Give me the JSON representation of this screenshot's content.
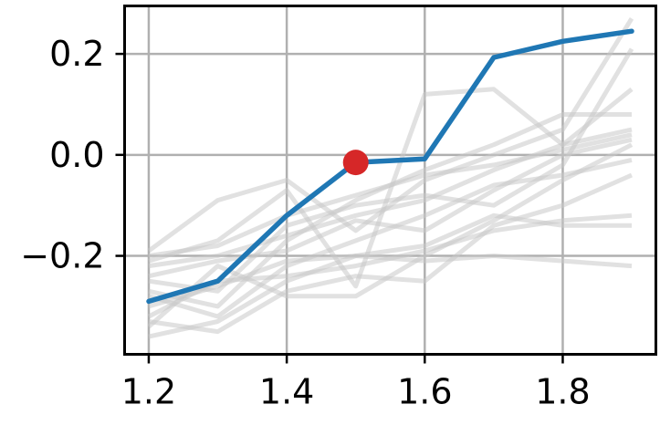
{
  "chart_data": {
    "type": "line",
    "title": "",
    "xlabel": "",
    "ylabel": "",
    "xlim": [
      1.165,
      1.935
    ],
    "ylim": [
      -0.395,
      0.295
    ],
    "grid": true,
    "legend": "none",
    "x_ticks": [
      {
        "value": 1.2,
        "label": "1.2"
      },
      {
        "value": 1.4,
        "label": "1.4"
      },
      {
        "value": 1.6,
        "label": "1.6"
      },
      {
        "value": 1.8,
        "label": "1.8"
      }
    ],
    "y_ticks": [
      {
        "value": 0.2,
        "label": "0.2"
      },
      {
        "value": 0.0,
        "label": "0.0"
      },
      {
        "value": -0.2,
        "label": "−0.2"
      }
    ],
    "x": [
      1.2,
      1.3,
      1.4,
      1.5,
      1.6,
      1.7,
      1.8,
      1.9
    ],
    "main_series": {
      "color": "#1f77b4",
      "values": [
        -0.29,
        -0.25,
        -0.12,
        -0.015,
        -0.008,
        0.193,
        0.225,
        0.245
      ]
    },
    "highlight_point": {
      "x": 1.5,
      "y": -0.015,
      "color": "#d62728"
    },
    "background_series_color": "#c8c8c8",
    "background_series": [
      {
        "values": [
          -0.19,
          -0.09,
          -0.05,
          -0.15,
          -0.05,
          0.0,
          0.05,
          0.27
        ]
      },
      {
        "values": [
          -0.21,
          -0.17,
          -0.07,
          -0.26,
          0.12,
          0.13,
          0.02,
          0.13
        ]
      },
      {
        "values": [
          -0.22,
          -0.2,
          -0.16,
          -0.12,
          -0.09,
          -0.03,
          0.02,
          0.05
        ]
      },
      {
        "values": [
          -0.24,
          -0.21,
          -0.19,
          -0.13,
          -0.15,
          -0.07,
          0.0,
          0.03
        ]
      },
      {
        "values": [
          -0.25,
          -0.27,
          -0.14,
          -0.1,
          -0.08,
          -0.1,
          -0.02,
          0.21
        ]
      },
      {
        "values": [
          -0.27,
          -0.3,
          -0.17,
          -0.09,
          -0.03,
          0.02,
          0.08,
          0.08
        ]
      },
      {
        "values": [
          -0.3,
          -0.26,
          -0.21,
          -0.2,
          -0.21,
          -0.2,
          -0.21,
          -0.22
        ]
      },
      {
        "values": [
          -0.32,
          -0.25,
          -0.24,
          -0.22,
          -0.19,
          -0.15,
          -0.13,
          -0.12
        ]
      },
      {
        "values": [
          -0.33,
          -0.35,
          -0.27,
          -0.24,
          -0.25,
          -0.14,
          -0.1,
          -0.04
        ]
      },
      {
        "values": [
          -0.34,
          -0.22,
          -0.28,
          -0.28,
          -0.2,
          -0.13,
          -0.05,
          0.02
        ]
      },
      {
        "values": [
          -0.36,
          -0.33,
          -0.25,
          -0.2,
          -0.18,
          -0.12,
          -0.14,
          -0.14
        ]
      },
      {
        "values": [
          -0.28,
          -0.32,
          -0.22,
          -0.17,
          -0.12,
          -0.06,
          -0.04,
          -0.01
        ]
      },
      {
        "values": [
          -0.2,
          -0.18,
          -0.12,
          -0.08,
          -0.04,
          -0.02,
          0.01,
          0.04
        ]
      }
    ]
  }
}
